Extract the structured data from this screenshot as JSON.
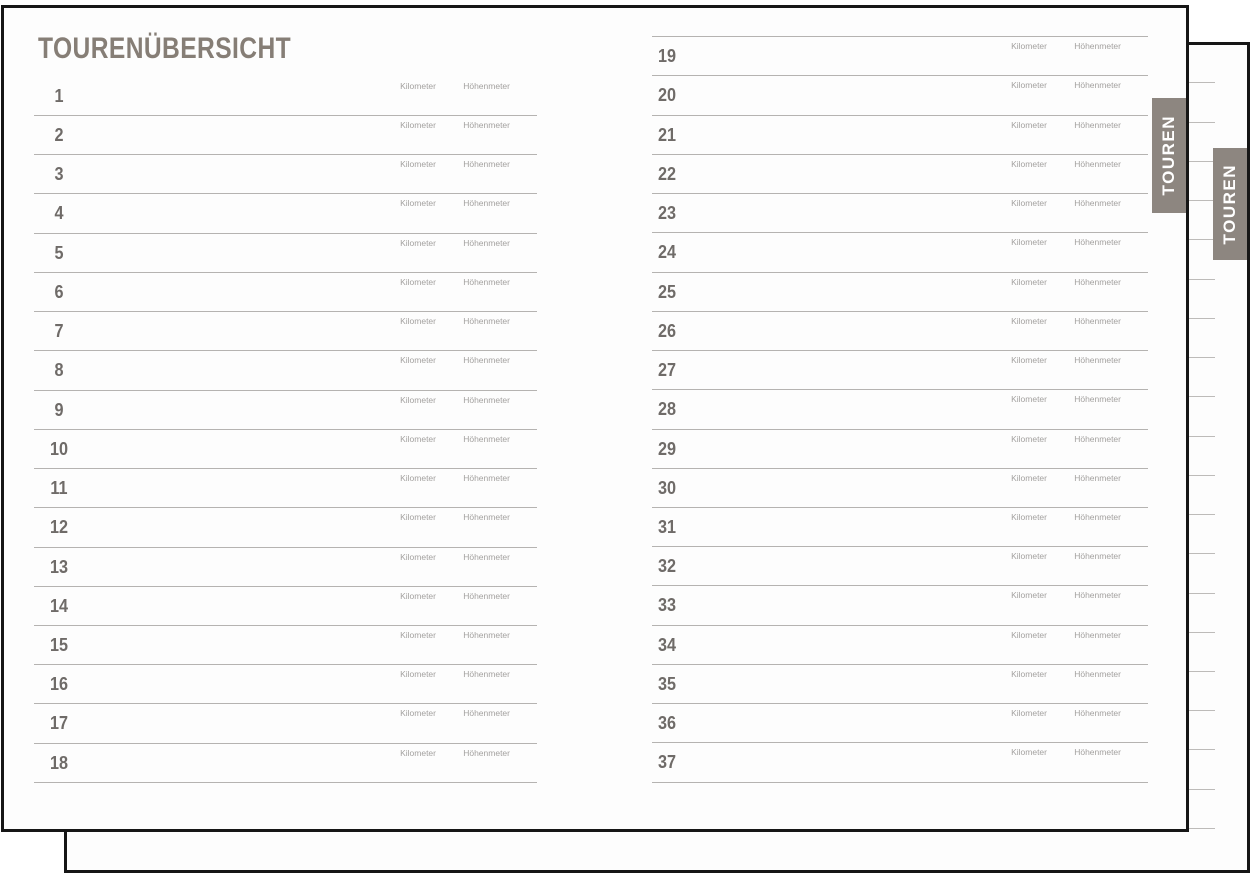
{
  "document": {
    "title": "TOURENÜBERSICHT",
    "side_tab": {
      "label": "TOUREN"
    },
    "back_side_tab": {
      "label": "TOUREN"
    },
    "row_labels": {
      "kilometer": "Kilometer",
      "hoehenmeter": "Höhenmeter"
    },
    "columns": {
      "left": {
        "tour_numbers": [
          "1",
          "2",
          "3",
          "4",
          "5",
          "6",
          "7",
          "8",
          "9",
          "10",
          "11",
          "12",
          "13",
          "14",
          "15",
          "16",
          "17",
          "18"
        ]
      },
      "right": {
        "tour_numbers": [
          "19",
          "20",
          "21",
          "22",
          "23",
          "24",
          "25",
          "26",
          "27",
          "28",
          "29",
          "30",
          "31",
          "32",
          "33",
          "34",
          "35",
          "36",
          "37"
        ]
      }
    },
    "back_page": {
      "ruled_line_count": 20
    },
    "colors": {
      "title": "#867e76",
      "number": "#6f6b68",
      "label": "#a3a19f",
      "line": "#bdbbb9",
      "line2": "#b5b3b1",
      "tab_bg": "#8d8680",
      "tab_text": "#ffffff",
      "border": "#161616"
    }
  }
}
